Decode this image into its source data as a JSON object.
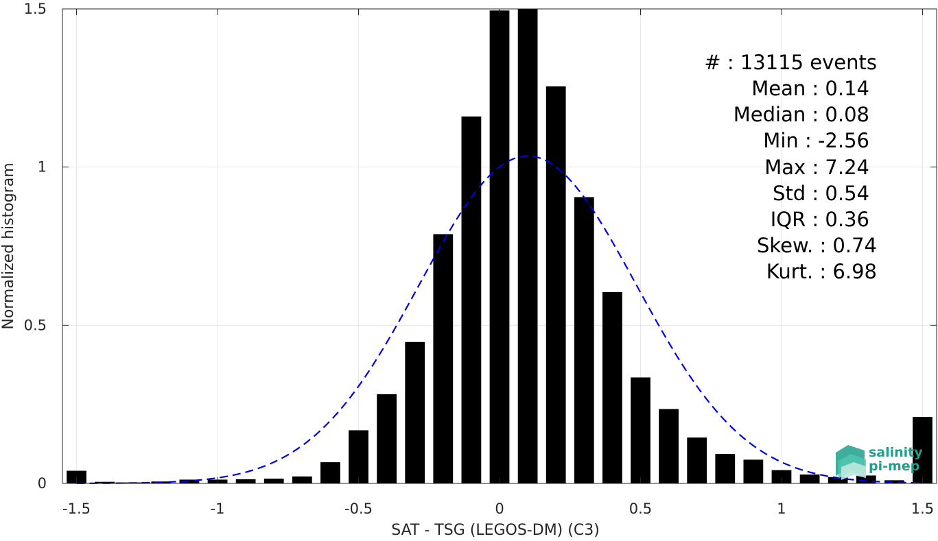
{
  "chart_data": {
    "type": "bar",
    "xlabel": "SAT - TSG (LEGOS-DM) (C3)",
    "ylabel": "Normalized histogram",
    "xlim": [
      -1.55,
      1.55
    ],
    "ylim": [
      0,
      1.5
    ],
    "xticks": [
      -1.5,
      -1,
      -0.5,
      0,
      0.5,
      1,
      1.5
    ],
    "xtick_labels": [
      "-1.5",
      "-1",
      "-0.5",
      "0",
      "0.5",
      "1",
      "1.5"
    ],
    "yticks": [
      0,
      0.5,
      1,
      1.5
    ],
    "ytick_labels": [
      "0",
      "0.5",
      "1",
      "1.5"
    ],
    "grid": true,
    "bar_width": 0.07,
    "x": [
      -1.5,
      -1.4,
      -1.3,
      -1.2,
      -1.1,
      -1.0,
      -0.9,
      -0.8,
      -0.7,
      -0.6,
      -0.5,
      -0.4,
      -0.3,
      -0.2,
      -0.1,
      0.0,
      0.1,
      0.2,
      0.3,
      0.4,
      0.5,
      0.6,
      0.7,
      0.8,
      0.9,
      1.0,
      1.1,
      1.2,
      1.3,
      1.4,
      1.5
    ],
    "values": [
      0.04,
      0.005,
      0.003,
      0.006,
      0.012,
      0.012,
      0.013,
      0.015,
      0.022,
      0.067,
      0.168,
      0.282,
      0.447,
      0.788,
      1.16,
      1.495,
      1.5,
      1.255,
      0.905,
      0.605,
      0.335,
      0.235,
      0.145,
      0.093,
      0.075,
      0.042,
      0.028,
      0.02,
      0.025,
      0.01,
      0.21
    ],
    "colors": {
      "bars": "#000000",
      "fit": "#0000e6",
      "grid": "#e6e6e6"
    },
    "fit_curve": {
      "style": "dashed",
      "type": "gaussian",
      "mean": 0.1,
      "std": 0.385,
      "peak": 1.035
    },
    "legend_position": "top-right"
  },
  "stats": {
    "count": "#  : 13115 events",
    "mean": "Mean : 0.14",
    "median": "Median : 0.08",
    "min": "Min : -2.56",
    "max": "Max : 7.24",
    "std": "Std : 0.54",
    "iqr": "IQR : 0.36",
    "skew": "Skew. : 0.74",
    "kurt": "Kurt. : 6.98"
  },
  "logo": {
    "line1": "salinity",
    "line2": "pi-mep",
    "color": "#1fa08c"
  }
}
